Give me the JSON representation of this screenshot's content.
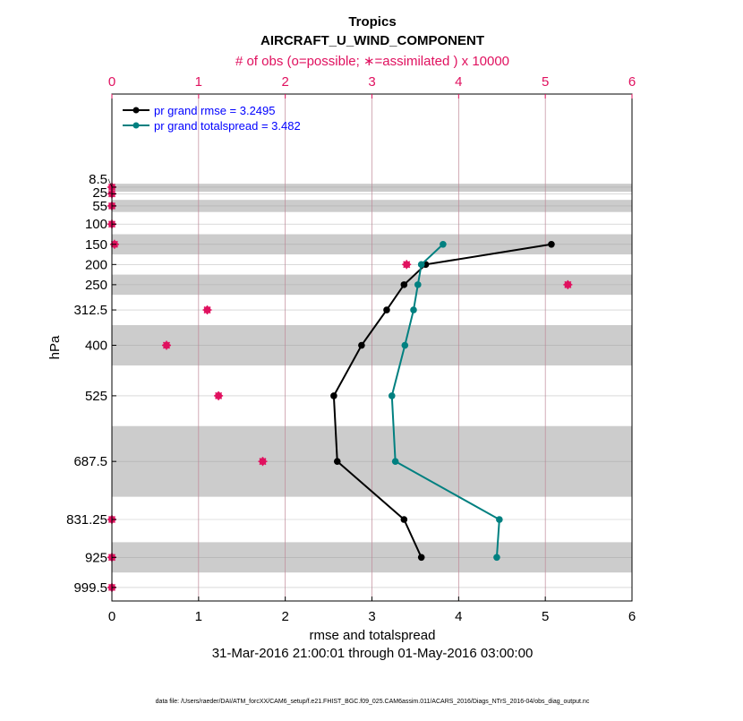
{
  "chart_data": {
    "type": "line",
    "title": "Tropics",
    "subtitle": "AIRCRAFT_U_WIND_COMPONENT",
    "top_xlabel": "# of obs (o=possible; ∗=assimilated ) x 10000",
    "xlabel": "rmse and totalspread",
    "ylabel": "hPa",
    "time_range": "31-Mar-2016 21:00:01 through 01-May-2016 03:00:00",
    "footer": "data file: /Users/raeder/DAI/ATM_forcXX/CAM6_setup/f.e21.FHIST_BGC.f09_025.CAM6assim.011/ACARS_2016/Diags_NTrS_2016-04/obs_diag_output.nc",
    "xlim": [
      0,
      6
    ],
    "xticks": [
      "0",
      "1",
      "2",
      "3",
      "4",
      "5",
      "6"
    ],
    "top_xlim": [
      0,
      6
    ],
    "top_xticks": [
      "0",
      "1",
      "2",
      "3",
      "4",
      "5",
      "6"
    ],
    "ylim": [
      -222,
      1033
    ],
    "y_reversed": true,
    "yticks": [
      8.5,
      25,
      55,
      100,
      150,
      200,
      250,
      312.5,
      400,
      525,
      687.5,
      831.25,
      925,
      999.5
    ],
    "ytick_labels": [
      "8.5",
      "25",
      "55",
      "100",
      "150",
      "200",
      "250",
      "312.5",
      "400",
      "525",
      "687.5",
      "831.25",
      "925",
      "999.5"
    ],
    "shaded_layers": [
      [
        0,
        20
      ],
      [
        40,
        70
      ],
      [
        125,
        175
      ],
      [
        225,
        275
      ],
      [
        350,
        450
      ],
      [
        600,
        775
      ],
      [
        887.5,
        962.5
      ]
    ],
    "grid": true,
    "legend_placement": "top-left",
    "series": [
      {
        "name": "pr grand rmse = 3.2495",
        "color": "#000000",
        "levels": [
          150,
          200,
          250,
          312.5,
          400,
          525,
          687.5,
          831.25,
          925
        ],
        "values": [
          5.07,
          3.62,
          3.37,
          3.17,
          2.88,
          2.56,
          2.6,
          3.37,
          3.57
        ]
      },
      {
        "name": "pr grand totalspread = 3.482",
        "color": "#008080",
        "levels": [
          150,
          200,
          250,
          312.5,
          400,
          525,
          687.5,
          831.25,
          925
        ],
        "values": [
          3.82,
          3.57,
          3.53,
          3.48,
          3.38,
          3.23,
          3.27,
          4.47,
          4.44
        ]
      }
    ],
    "obs": {
      "color": "#e0115f",
      "levels": [
        8.5,
        25,
        55,
        100,
        150,
        200,
        250,
        312.5,
        400,
        525,
        687.5,
        831.25,
        925,
        999.5
      ],
      "possible": [
        0,
        0,
        0,
        0,
        0.03,
        3.4,
        5.26,
        1.1,
        0.63,
        1.23,
        1.74,
        0,
        0,
        0
      ],
      "assimilated": [
        0,
        0,
        0,
        0,
        0.03,
        3.4,
        5.26,
        1.1,
        0.63,
        1.23,
        1.74,
        0,
        0,
        0
      ]
    }
  }
}
